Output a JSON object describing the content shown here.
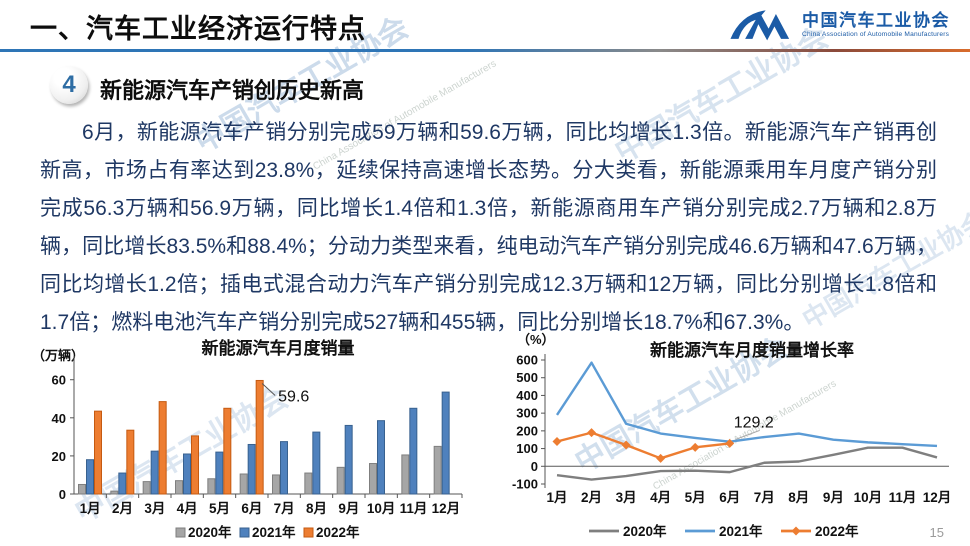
{
  "header": {
    "title": "一、汽车工业经济运行特点",
    "logo_cn": "中国汽车工业协会",
    "logo_en": "China Association of Automobile Manufacturers"
  },
  "section": {
    "number": "4",
    "title": "新能源汽车产销创历史新高"
  },
  "paragraph": {
    "text": "6月，新能源汽车产销分别完成59万辆和59.6万辆，同比均增长1.3倍。新能源汽车产销再创新高，市场占有率达到23.8%，延续保持高速增长态势。分大类看，新能源乘用车月度产销分别完成56.3万辆和56.9万辆，同比增长1.4倍和1.3倍，新能源商用车产销分别完成2.7万辆和2.8万辆，同比增长83.5%和88.4%；分动力类型来看，纯电动汽车产销分别完成46.6万辆和47.6万辆，同比均增长1.2倍；插电式混合动力汽车产销分别完成12.3万辆和12万辆，同比分别增长1.8倍和1.7倍；燃料电池汽车产销分别完成527辆和455辆，同比分别增长18.7%和67.3%。"
  },
  "watermark": {
    "cn": "中国汽车工业协会",
    "en": "China Association of Automobile Manufacturers"
  },
  "page_number": "15",
  "colors": {
    "accent_blue": "#2e75b6",
    "logo_blue": "#1b5ba6",
    "body_text": "#1f3864",
    "bar_gray": "#a6a6a6",
    "bar_blue": "#4f81bd",
    "bar_orange": "#ed7d31",
    "line_gray": "#7f7f7f",
    "line_blue": "#5b9bd5",
    "line_orange": "#ed7d31"
  },
  "chart_data": [
    {
      "type": "bar",
      "title": "新能源汽车月度销量",
      "unit_label": "（万辆）",
      "categories": [
        "1月",
        "2月",
        "3月",
        "4月",
        "5月",
        "6月",
        "7月",
        "8月",
        "9月",
        "10月",
        "11月",
        "12月"
      ],
      "series": [
        {
          "name": "2020年",
          "color": "#a6a6a6",
          "border": "#7f7f7f",
          "values": [
            5,
            1.5,
            6.5,
            7,
            8,
            10.5,
            10,
            11,
            14,
            16,
            20.5,
            25
          ]
        },
        {
          "name": "2021年",
          "color": "#4f81bd",
          "border": "#38618f",
          "values": [
            18,
            11,
            22.5,
            21,
            22,
            26,
            27.5,
            32.5,
            36,
            38.5,
            45,
            53.5
          ]
        },
        {
          "name": "2022年",
          "color": "#ed7d31",
          "border": "#c55a11",
          "values": [
            43.5,
            33.5,
            48.5,
            30.5,
            45,
            59.6,
            null,
            null,
            null,
            null,
            null,
            null
          ]
        }
      ],
      "yticks": [
        0,
        20,
        40,
        60
      ],
      "ylim": [
        0,
        63
      ],
      "grid": false,
      "legend_position": "bottom",
      "annotation": {
        "text": "59.6",
        "series": "2022年",
        "category": "6月"
      }
    },
    {
      "type": "line",
      "title": "新能源汽车月度销量增长率",
      "unit_label": "（%）",
      "categories": [
        "1月",
        "2月",
        "3月",
        "4月",
        "5月",
        "6月",
        "7月",
        "8月",
        "9月",
        "10月",
        "11月",
        "12月"
      ],
      "series": [
        {
          "name": "2020年",
          "color": "#7f7f7f",
          "marker": "none",
          "values": [
            -50,
            -75,
            -55,
            -27,
            -25,
            -33,
            20,
            27,
            65,
            105,
            105,
            50
          ]
        },
        {
          "name": "2021年",
          "color": "#5b9bd5",
          "marker": "none",
          "values": [
            290,
            585,
            240,
            185,
            160,
            139,
            165,
            185,
            150,
            135,
            125,
            115
          ]
        },
        {
          "name": "2022年",
          "color": "#ed7d31",
          "marker": "diamond",
          "values": [
            140,
            190,
            120,
            45,
            107,
            129.2,
            null,
            null,
            null,
            null,
            null,
            null
          ]
        }
      ],
      "yticks": [
        600,
        500,
        400,
        300,
        200,
        100,
        0,
        -100
      ],
      "ylim": [
        -100,
        600
      ],
      "grid": false,
      "legend_position": "bottom",
      "annotation": {
        "text": "129.2",
        "series": "2022年",
        "category": "6月"
      }
    }
  ]
}
